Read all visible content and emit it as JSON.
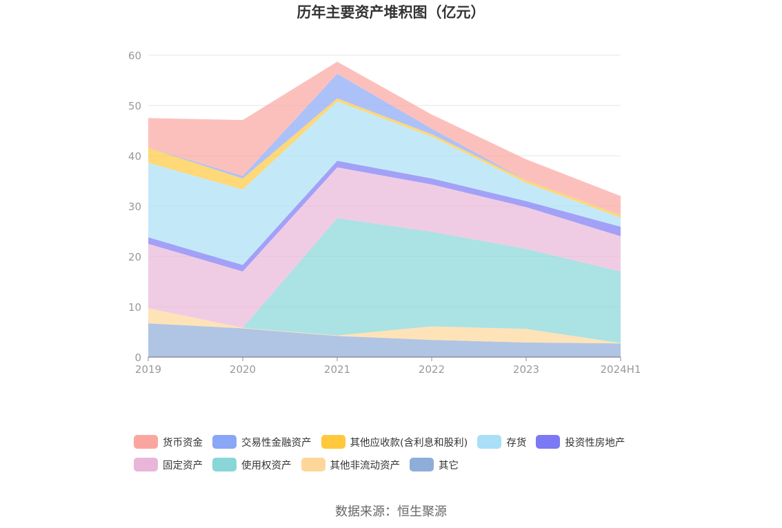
{
  "source_text": "数据来源：恒生聚源",
  "chart_data": {
    "type": "area",
    "stacked": true,
    "title": "历年主要资产堆积图（亿元）",
    "categories": [
      "2019",
      "2020",
      "2021",
      "2022",
      "2023",
      "2024H1"
    ],
    "ylim": [
      0,
      60
    ],
    "yticks": [
      0,
      10,
      20,
      30,
      40,
      50,
      60
    ],
    "grid": true,
    "legend_position": "bottom",
    "series": [
      {
        "name": "其它",
        "color": "#8fadd9",
        "values": [
          6.7,
          5.7,
          4.2,
          3.4,
          2.9,
          2.7
        ]
      },
      {
        "name": "其他非流动资产",
        "color": "#fdd79a",
        "values": [
          3.0,
          0.1,
          0.1,
          2.7,
          2.7,
          0.1
        ]
      },
      {
        "name": "使用权资产",
        "color": "#88d6d7",
        "values": [
          0.0,
          0.0,
          23.3,
          18.8,
          15.9,
          14.2
        ]
      },
      {
        "name": "固定资产",
        "color": "#e9b6d9",
        "values": [
          12.8,
          11.2,
          10.1,
          9.4,
          8.3,
          7.0
        ]
      },
      {
        "name": "投资性房地产",
        "color": "#7b79f3",
        "values": [
          1.3,
          1.3,
          1.3,
          1.2,
          1.2,
          1.9
        ]
      },
      {
        "name": "存货",
        "color": "#a9dff7",
        "values": [
          14.8,
          15.0,
          11.8,
          8.3,
          3.6,
          1.8
        ]
      },
      {
        "name": "其他应收款(含利息和股利)",
        "color": "#ffc83d",
        "values": [
          3.0,
          2.2,
          0.6,
          0.5,
          0.5,
          0.5
        ]
      },
      {
        "name": "交易性金融资产",
        "color": "#8aa6f7",
        "values": [
          0.0,
          0.5,
          4.9,
          1.1,
          0.0,
          0.0
        ]
      },
      {
        "name": "货币资金",
        "color": "#fba59f",
        "values": [
          5.9,
          11.1,
          2.4,
          2.8,
          4.2,
          3.8
        ]
      }
    ],
    "legend": [
      [
        "货币资金",
        "交易性金融资产",
        "其他应收款(含利息和股利)",
        "存货",
        "投资性房地产"
      ],
      [
        "固定资产",
        "使用权资产",
        "其他非流动资产",
        "其它"
      ]
    ]
  }
}
